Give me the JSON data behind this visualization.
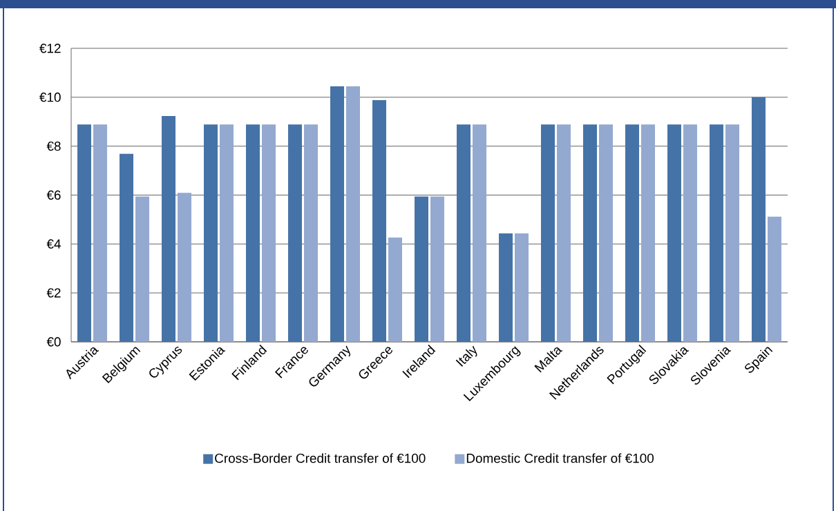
{
  "chart_data": {
    "type": "bar",
    "categories": [
      "Austria",
      "Belgium",
      "Cyprus",
      "Estonia",
      "Finland",
      "France",
      "Germany",
      "Greece",
      "Ireland",
      "Italy",
      "Luxembourg",
      "Malta",
      "Netherlands",
      "Portugal",
      "Slovakia",
      "Slovenia",
      "Spain"
    ],
    "series": [
      {
        "name": "Cross-Border Credit transfer of €100",
        "color": "#4573a7",
        "values": [
          8.89,
          7.69,
          9.23,
          8.89,
          8.89,
          8.89,
          10.45,
          9.88,
          5.94,
          8.89,
          4.43,
          8.89,
          8.89,
          8.89,
          8.89,
          8.89,
          10.0
        ]
      },
      {
        "name": "Domestic Credit transfer of €100",
        "color": "#94a9cf",
        "values": [
          8.89,
          5.94,
          6.09,
          8.89,
          8.89,
          8.89,
          10.45,
          4.26,
          5.94,
          8.89,
          4.43,
          8.89,
          8.89,
          8.89,
          8.89,
          8.89,
          5.12
        ]
      }
    ],
    "ylim": [
      0,
      12
    ],
    "yticks": [
      {
        "value": 0,
        "label": "€0"
      },
      {
        "value": 2,
        "label": "€2"
      },
      {
        "value": 4,
        "label": "€4"
      },
      {
        "value": 6,
        "label": "€6"
      },
      {
        "value": 8,
        "label": "€8"
      },
      {
        "value": 10,
        "label": "€10"
      },
      {
        "value": 12,
        "label": "€12"
      }
    ],
    "grid": "y",
    "legend": "bottom"
  }
}
